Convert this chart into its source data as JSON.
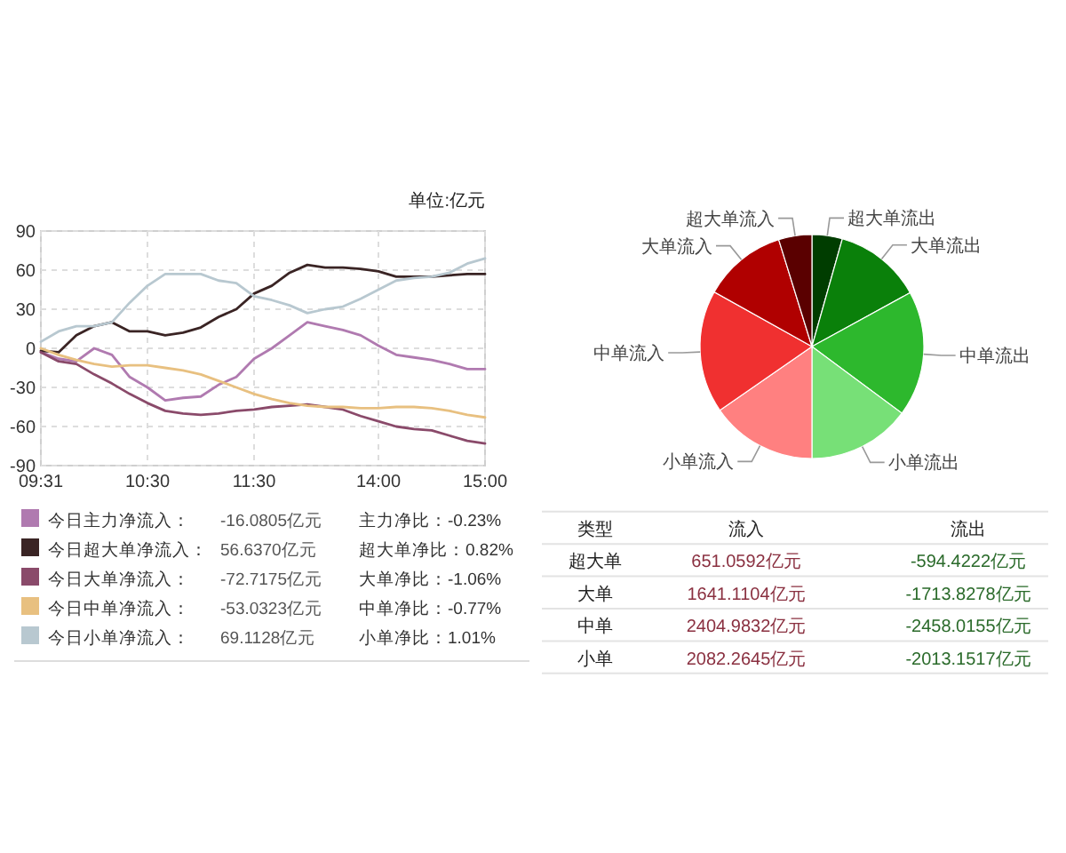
{
  "chart_data": [
    {
      "type": "line",
      "ylabel": "单位:亿元",
      "ylim": [
        -90,
        90
      ],
      "yticks": [
        -90,
        -60,
        -30,
        0,
        30,
        60,
        90
      ],
      "grid": true,
      "legend": "bottom",
      "categories": [
        "09:31",
        null,
        null,
        null,
        null,
        null,
        "10:30",
        null,
        null,
        null,
        null,
        null,
        "11:30",
        null,
        null,
        null,
        null,
        null,
        null,
        "14:00",
        null,
        null,
        null,
        null,
        null,
        "15:00"
      ],
      "series": [
        {
          "name": "今日主力净流入：",
          "color": "#b07ab0",
          "values": [
            -3,
            -8,
            -10,
            0,
            -5,
            -22,
            -30,
            -40,
            -38,
            -37,
            -28,
            -22,
            -8,
            0,
            10,
            20,
            17,
            14,
            10,
            2,
            -5,
            -7,
            -9,
            -12,
            -16,
            -16
          ]
        },
        {
          "name": "今日超大单净流入：",
          "color": "#3a2424",
          "values": [
            -2,
            -3,
            10,
            17,
            20,
            13,
            13,
            10,
            12,
            16,
            24,
            30,
            42,
            48,
            58,
            64,
            62,
            62,
            61,
            59,
            55,
            55,
            55,
            56,
            57,
            57
          ]
        },
        {
          "name": "今日大单净流入：",
          "color": "#8a4a6a",
          "values": [
            -3,
            -10,
            -12,
            -20,
            -27,
            -35,
            -42,
            -48,
            -50,
            -51,
            -50,
            -48,
            -47,
            -45,
            -44,
            -43,
            -45,
            -47,
            -52,
            -56,
            -60,
            -62,
            -63,
            -67,
            -71,
            -73
          ]
        },
        {
          "name": "今日中单净流入：",
          "color": "#e8c080",
          "values": [
            0,
            -5,
            -9,
            -12,
            -14,
            -13,
            -13,
            -15,
            -17,
            -20,
            -25,
            -30,
            -35,
            -39,
            -42,
            -44,
            -45,
            -45,
            -46,
            -46,
            -45,
            -45,
            -46,
            -48,
            -51,
            -53
          ]
        },
        {
          "name": "今日小单净流入：",
          "color": "#b8c8d0",
          "values": [
            5,
            13,
            17,
            17,
            20,
            35,
            48,
            57,
            57,
            57,
            52,
            50,
            40,
            37,
            33,
            27,
            30,
            32,
            38,
            45,
            52,
            54,
            55,
            58,
            65,
            69
          ]
        }
      ],
      "annotations": [
        "-16.0805亿元",
        "主力净比：-0.23%",
        "56.6370亿元",
        "超大单净比：0.82%",
        "-72.7175亿元",
        "大单净比：-1.06%",
        "-53.0323亿元",
        "中单净比：-0.77%",
        "69.1128亿元",
        "小单净比：1.01%"
      ]
    },
    {
      "type": "pie",
      "categories": [
        "超大单流出",
        "大单流出",
        "中单流出",
        "小单流出",
        "小单流入",
        "中单流入",
        "大单流入",
        "超大单流入"
      ],
      "values": [
        4.38,
        12.64,
        18.13,
        14.85,
        15.36,
        17.74,
        12.1,
        4.8
      ],
      "colors": [
        "#003d00",
        "#0a800a",
        "#2db82d",
        "#77e077",
        "#ff8080",
        "#f03030",
        "#b00000",
        "#5a0000"
      ]
    },
    {
      "type": "other",
      "annotations": [
        "类型",
        "流入",
        "流出",
        "超大单",
        "651.0592亿元",
        "-594.4222亿元",
        "大单",
        "1641.1104亿元",
        "-1713.8278亿元",
        "中单",
        "2404.9832亿元",
        "-2458.0155亿元",
        "小单",
        "2082.2645亿元",
        "-2013.1517亿元"
      ]
    }
  ]
}
